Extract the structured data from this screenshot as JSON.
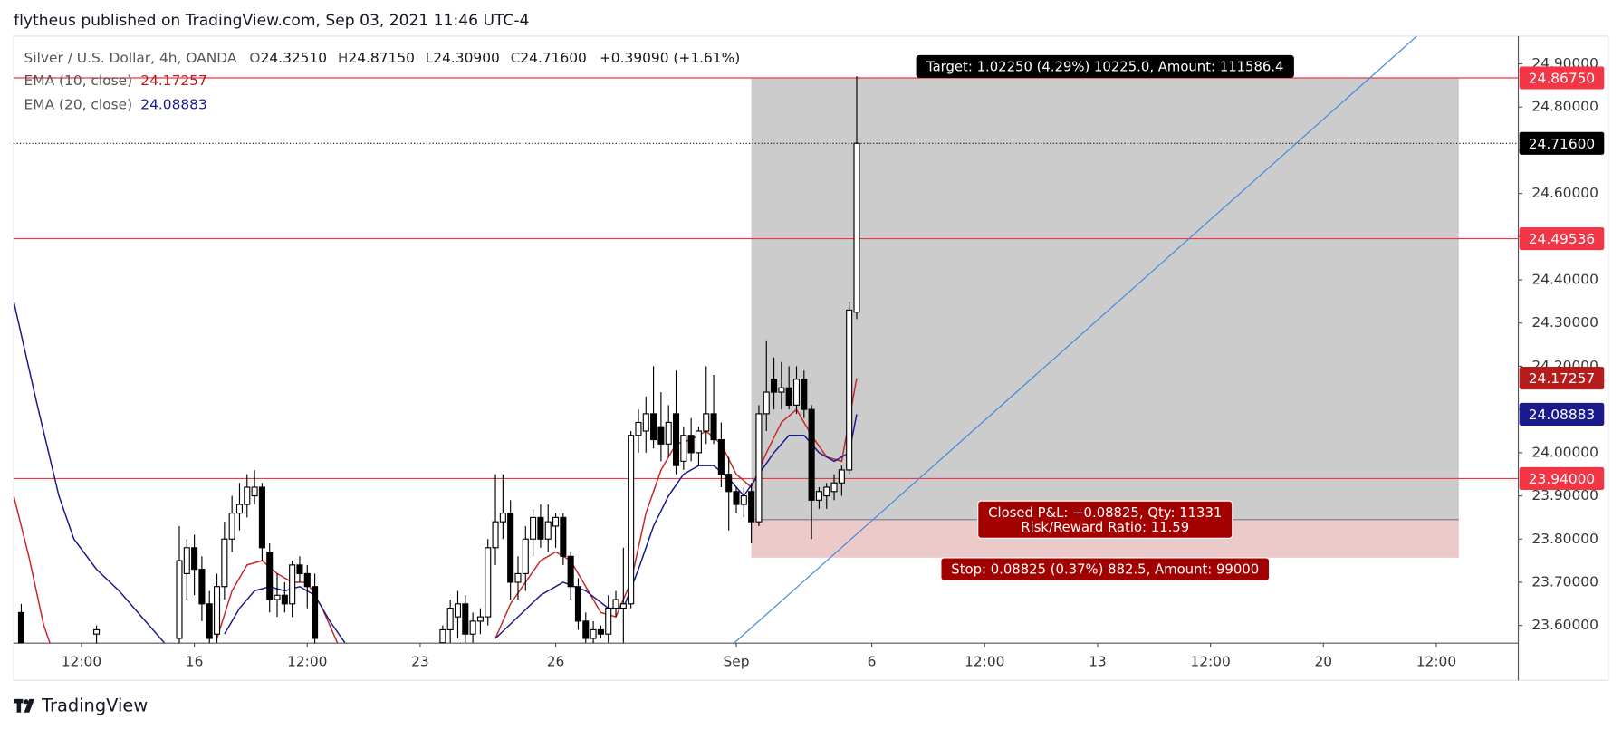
{
  "chart_data": {
    "type": "candlestick",
    "header": "flytheus published on TradingView.com, Sep 03, 2021 11:46 UTC-4",
    "title": "Silver / U.S. Dollar, 4h, OANDA",
    "ohlc_legend": [
      {
        "key": "O",
        "value": "24.32510"
      },
      {
        "key": "H",
        "value": "24.87150"
      },
      {
        "key": "L",
        "value": "24.30900"
      },
      {
        "key": "C",
        "value": "24.71600"
      }
    ],
    "change": "+0.39090 (+1.61%)",
    "brand": "TradingView",
    "up_color": "#ffffff",
    "down_color": "#000000",
    "x": [
      -23,
      -13,
      -2,
      -1,
      0,
      1,
      2,
      3,
      4,
      5,
      6,
      7,
      8,
      9,
      10,
      11,
      12,
      13,
      14,
      15,
      16,
      33,
      34,
      35,
      36,
      37,
      38,
      39,
      40,
      41,
      42,
      43,
      44,
      45,
      46,
      47,
      48,
      49,
      50,
      51,
      52,
      53,
      54,
      55,
      56,
      57,
      58,
      59,
      60,
      61,
      62,
      63,
      64,
      65,
      66,
      67,
      68,
      69,
      70,
      71,
      72,
      73,
      74,
      75,
      76,
      77,
      78,
      79,
      80,
      81,
      82,
      83,
      84,
      85,
      86,
      87,
      88
    ],
    "open": [
      23.63,
      23.58,
      23.57,
      23.72,
      23.78,
      23.73,
      23.65,
      23.58,
      23.69,
      23.8,
      23.86,
      23.88,
      23.9,
      23.92,
      23.77,
      23.66,
      23.67,
      23.65,
      23.74,
      23.72,
      23.69,
      23.56,
      23.59,
      23.62,
      23.65,
      23.58,
      23.61,
      23.62,
      23.78,
      23.84,
      23.86,
      23.7,
      23.72,
      23.8,
      23.85,
      23.8,
      23.83,
      23.85,
      23.76,
      23.69,
      23.61,
      23.57,
      23.59,
      23.58,
      23.64,
      23.64,
      23.65,
      24.04,
      24.05,
      24.09,
      24.06,
      24.02,
      24.09,
      23.98,
      24.04,
      24.0,
      24.05,
      24.09,
      24.03,
      23.95,
      23.91,
      23.88,
      23.91,
      23.84,
      24.09,
      24.17,
      24.14,
      24.15,
      24.11,
      24.17,
      24.1,
      23.89,
      23.9,
      23.91,
      23.93,
      23.96,
      24.3251
    ],
    "high": [
      23.65,
      23.6,
      23.83,
      23.8,
      23.81,
      23.76,
      23.68,
      23.72,
      23.84,
      23.9,
      23.93,
      23.95,
      23.96,
      23.93,
      23.79,
      23.72,
      23.7,
      23.75,
      23.76,
      23.74,
      23.72,
      23.6,
      23.66,
      23.68,
      23.67,
      23.63,
      23.64,
      23.8,
      23.95,
      23.95,
      23.89,
      23.76,
      23.83,
      23.87,
      23.88,
      23.88,
      23.86,
      23.86,
      23.77,
      23.71,
      23.63,
      23.61,
      23.6,
      23.67,
      23.68,
      23.78,
      24.05,
      24.1,
      24.13,
      24.2,
      24.14,
      24.11,
      24.19,
      24.06,
      24.08,
      24.06,
      24.2,
      24.18,
      24.07,
      23.99,
      23.92,
      23.92,
      23.93,
      24.11,
      24.26,
      24.22,
      24.21,
      24.2,
      24.2,
      24.19,
      24.11,
      23.92,
      23.93,
      23.95,
      23.97,
      24.35,
      24.8715
    ],
    "low": [
      23.54,
      23.55,
      23.55,
      23.66,
      23.67,
      23.61,
      23.55,
      23.56,
      23.66,
      23.77,
      23.82,
      23.85,
      23.88,
      23.75,
      23.63,
      23.62,
      23.63,
      23.62,
      23.7,
      23.64,
      23.55,
      23.55,
      23.56,
      23.57,
      23.56,
      23.56,
      23.58,
      23.6,
      23.74,
      23.8,
      23.66,
      23.66,
      23.68,
      23.76,
      23.78,
      23.77,
      23.78,
      23.74,
      23.66,
      23.59,
      23.56,
      23.55,
      23.57,
      23.56,
      23.62,
      23.56,
      23.64,
      24.0,
      24.0,
      24.01,
      23.98,
      23.99,
      23.95,
      23.96,
      23.98,
      23.97,
      24.02,
      24.02,
      23.92,
      23.82,
      23.86,
      23.85,
      23.79,
      23.83,
      24.05,
      24.1,
      24.1,
      24.1,
      24.09,
      24.08,
      23.8,
      23.87,
      23.87,
      23.89,
      23.9,
      23.95,
      24.309
    ],
    "close": [
      23.55,
      23.59,
      23.75,
      23.78,
      23.73,
      23.65,
      23.57,
      23.69,
      23.8,
      23.86,
      23.88,
      23.92,
      23.92,
      23.78,
      23.66,
      23.67,
      23.65,
      23.74,
      23.72,
      23.69,
      23.57,
      23.59,
      23.64,
      23.65,
      23.58,
      23.61,
      23.62,
      23.78,
      23.84,
      23.86,
      23.7,
      23.72,
      23.8,
      23.85,
      23.8,
      23.84,
      23.85,
      23.76,
      23.69,
      23.61,
      23.57,
      23.59,
      23.58,
      23.64,
      23.66,
      23.65,
      24.04,
      24.07,
      24.09,
      24.03,
      24.02,
      24.07,
      23.97,
      24.04,
      24.0,
      24.05,
      24.09,
      24.03,
      23.95,
      23.91,
      23.88,
      23.9,
      23.84,
      24.09,
      24.14,
      24.14,
      24.15,
      24.11,
      24.17,
      24.1,
      23.89,
      23.91,
      23.92,
      23.93,
      23.96,
      24.33,
      24.716
    ],
    "series": [
      {
        "name": "EMA (10, close)",
        "color": "#c62828",
        "badge_color": "#b71c1c",
        "last_label": "24.17257",
        "x": [
          -24,
          -22,
          -20,
          -19,
          -8,
          3,
          5,
          7,
          9,
          11,
          13,
          15,
          17,
          19,
          30,
          40,
          42,
          44,
          46,
          48,
          50,
          52,
          54,
          56,
          58,
          60,
          62,
          64,
          66,
          68,
          70,
          72,
          74,
          76,
          78,
          80,
          82,
          84,
          86,
          88
        ],
        "values": [
          23.9,
          23.76,
          23.6,
          23.55,
          null,
          23.57,
          23.68,
          23.74,
          23.75,
          23.72,
          23.7,
          23.7,
          23.64,
          23.56,
          null,
          23.57,
          23.65,
          23.7,
          23.75,
          23.77,
          23.75,
          23.69,
          23.63,
          23.62,
          23.7,
          23.86,
          23.96,
          24.02,
          24.03,
          24.05,
          24.02,
          23.95,
          23.92,
          24.0,
          24.07,
          24.1,
          24.04,
          23.99,
          23.98,
          24.17257
        ]
      },
      {
        "name": "EMA (20, close)",
        "color": "#1a1a8c",
        "badge_color": "#1a1a8c",
        "last_label": "24.08883",
        "x": [
          -24,
          -21,
          -18,
          -16,
          -13,
          -10,
          -7,
          -4,
          0,
          4,
          6,
          8,
          10,
          12,
          14,
          16,
          18,
          20,
          30,
          40,
          43,
          46,
          49,
          52,
          55,
          57,
          59,
          61,
          63,
          65,
          67,
          69,
          71,
          73,
          75,
          77,
          79,
          81,
          83,
          85,
          87,
          88
        ],
        "values": [
          24.35,
          24.12,
          23.9,
          23.8,
          23.73,
          23.68,
          23.62,
          23.56,
          null,
          23.58,
          23.64,
          23.68,
          23.69,
          23.68,
          23.69,
          23.67,
          23.61,
          23.56,
          null,
          23.57,
          23.62,
          23.67,
          23.7,
          23.68,
          23.64,
          23.64,
          23.73,
          23.83,
          23.9,
          23.95,
          23.97,
          23.97,
          23.94,
          23.9,
          23.95,
          24.0,
          24.04,
          24.04,
          24.0,
          23.98,
          24.0,
          24.08883
        ]
      }
    ],
    "xlim": [
      -24,
      175.9
    ],
    "xticks": [
      {
        "value": -15,
        "label": "12:00"
      },
      {
        "value": 0,
        "label": "16"
      },
      {
        "value": 15,
        "label": "12:00"
      },
      {
        "value": 30,
        "label": "23"
      },
      {
        "value": 48,
        "label": "26"
      },
      {
        "value": 72,
        "label": "Sep"
      },
      {
        "value": 90,
        "label": "6"
      },
      {
        "value": 105,
        "label": "12:00"
      },
      {
        "value": 120,
        "label": "13"
      },
      {
        "value": 135,
        "label": "12:00"
      },
      {
        "value": 150,
        "label": "20"
      },
      {
        "value": 165,
        "label": "12:00"
      }
    ],
    "ylim": [
      23.559,
      24.964
    ],
    "yticks": [
      {
        "value": 23.6,
        "label": "23.60000"
      },
      {
        "value": 23.7,
        "label": "23.70000"
      },
      {
        "value": 23.8,
        "label": "23.80000"
      },
      {
        "value": 23.9,
        "label": "23.90000"
      },
      {
        "value": 24.0,
        "label": "24.00000"
      },
      {
        "value": 24.1,
        "label": "24.10000"
      },
      {
        "value": 24.2,
        "label": "24.20000"
      },
      {
        "value": 24.3,
        "label": "24.30000"
      },
      {
        "value": 24.4,
        "label": "24.40000"
      },
      {
        "value": 24.5,
        "label": "24.50000"
      },
      {
        "value": 24.6,
        "label": "24.60000"
      },
      {
        "value": 24.7,
        "label": "24.70000"
      },
      {
        "value": 24.8,
        "label": "24.80000"
      },
      {
        "value": 24.9,
        "label": "24.90000"
      }
    ],
    "price_lines": [
      {
        "value": 24.8675,
        "label": "24.86750",
        "color": "#f23645",
        "style": "solid"
      },
      {
        "value": 24.716,
        "label": "24.71600",
        "color": "#000000",
        "style": "dotted"
      },
      {
        "value": 24.49536,
        "label": "24.49536",
        "color": "#f23645",
        "style": "solid"
      },
      {
        "value": 23.94,
        "label": "23.94000",
        "color": "#f23645",
        "style": "solid"
      }
    ],
    "position": {
      "x": [
        74,
        168
      ],
      "target": 24.8675,
      "entry": 23.845,
      "stop": 23.75675,
      "target_color": "#cccccc",
      "stop_color": "#eccaca",
      "label_color": "#a30000",
      "target_label": "Target: 1.02250 (4.29%) 10225.0, Amount: 111586.4",
      "pnl_label": "Closed P&L: −0.08825, Qty: 11331",
      "rr_label": "Risk/Reward Ratio: 11.59",
      "stop_label": "Stop: 0.08825 (0.37%) 882.5, Amount: 99000"
    },
    "trendline": {
      "x": [
        71.7,
        162.4
      ],
      "y": [
        23.559,
        24.964
      ],
      "color": "#3d85e0"
    }
  }
}
